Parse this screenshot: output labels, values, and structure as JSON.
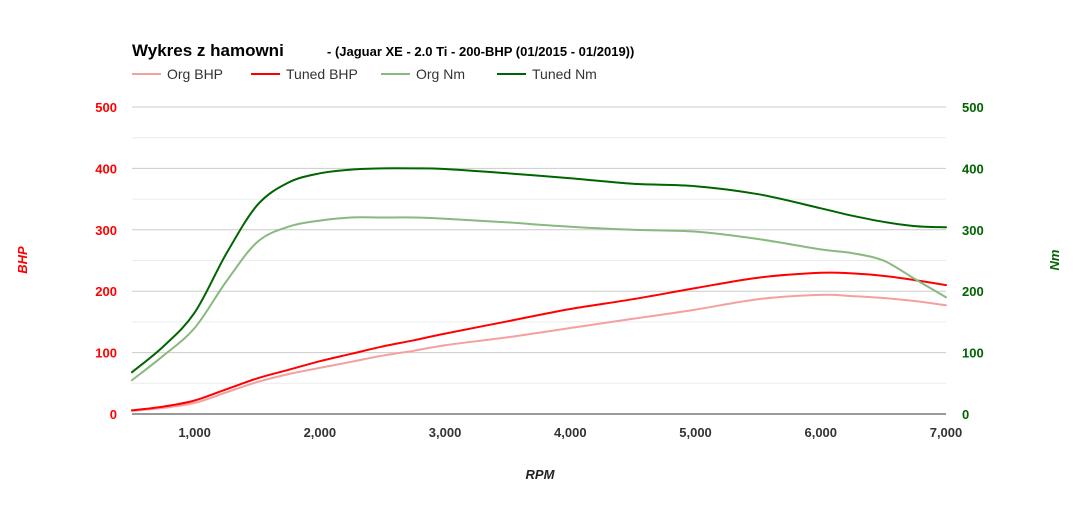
{
  "chart_data": {
    "type": "line",
    "title": "Wykres z hamowni",
    "subtitle": "- (Jaguar XE - 2.0 Ti - 200-BHP (01/2015 - 01/2019))",
    "xlabel": "RPM",
    "ylabel_left": "BHP",
    "ylabel_right": "Nm",
    "xlim": [
      500,
      7000
    ],
    "ylim_left": [
      0,
      500
    ],
    "ylim_right": [
      0,
      500
    ],
    "x_ticks": [
      1000,
      2000,
      3000,
      4000,
      5000,
      6000,
      7000
    ],
    "x_tick_labels": [
      "1,000",
      "2,000",
      "3,000",
      "4,000",
      "5,000",
      "6,000",
      "7,000"
    ],
    "y_ticks": [
      0,
      100,
      200,
      300,
      400,
      500
    ],
    "y_tick_labels": [
      "0",
      "100",
      "200",
      "300",
      "400",
      "500"
    ],
    "grid": true,
    "legend_position": "top-left",
    "x": [
      500,
      750,
      1000,
      1250,
      1500,
      1750,
      2000,
      2250,
      2500,
      2750,
      3000,
      3500,
      4000,
      4500,
      5000,
      5500,
      6000,
      6250,
      6500,
      6750,
      7000
    ],
    "series": [
      {
        "name": "Org BHP",
        "axis": "left",
        "color": "#f4a0a0",
        "values": [
          5,
          10,
          18,
          35,
          52,
          65,
          75,
          85,
          95,
          103,
          112,
          125,
          140,
          155,
          170,
          187,
          194,
          192,
          189,
          184,
          177
        ]
      },
      {
        "name": "Tuned BHP",
        "axis": "left",
        "color": "#ff0000",
        "values": [
          6,
          12,
          22,
          40,
          58,
          72,
          86,
          98,
          110,
          120,
          131,
          151,
          171,
          187,
          205,
          222,
          230,
          229,
          225,
          218,
          210
        ]
      },
      {
        "name": "Org Nm",
        "axis": "right",
        "color": "#88b97e",
        "values": [
          55,
          95,
          140,
          215,
          280,
          305,
          315,
          320,
          320,
          320,
          318,
          312,
          305,
          300,
          297,
          285,
          268,
          262,
          250,
          220,
          190
        ]
      },
      {
        "name": "Tuned Nm",
        "axis": "right",
        "color": "#006400",
        "values": [
          68,
          110,
          165,
          260,
          340,
          377,
          392,
          398,
          400,
          400,
          399,
          392,
          384,
          375,
          371,
          358,
          335,
          323,
          313,
          306,
          304
        ]
      }
    ]
  }
}
